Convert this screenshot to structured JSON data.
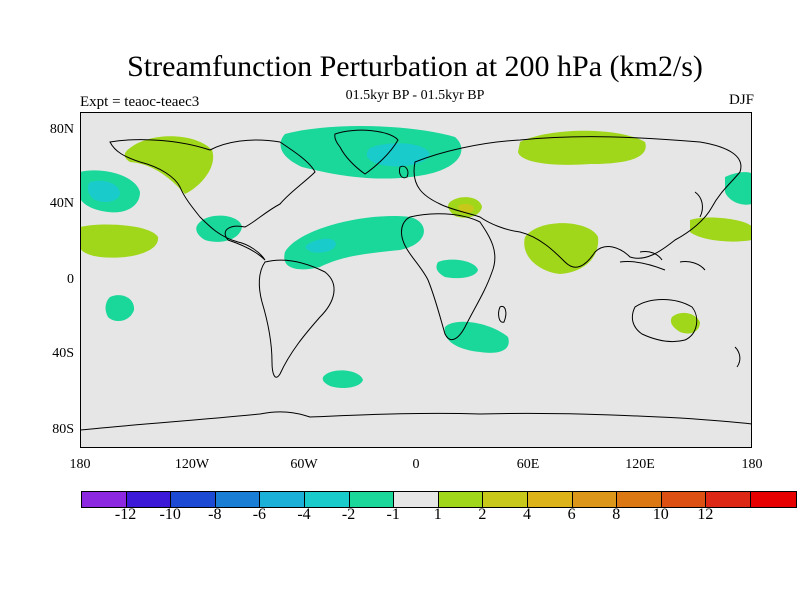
{
  "title": "Streamfunction Perturbation at 200 hPa (km2/s)",
  "left_label": "Expt = teaoc-teaec3",
  "center_label": "01.5kyr BP - 01.5kyr BP",
  "right_label": "DJF",
  "y_labels": [
    "80N",
    "40N",
    "0",
    "40S",
    "80S"
  ],
  "x_labels": [
    "180",
    "120W",
    "60W",
    "0",
    "60E",
    "120E",
    "180"
  ],
  "colorbar": {
    "colors": [
      "#8c28e0",
      "#3c19d8",
      "#1c4ad2",
      "#1a7fd4",
      "#1ab0d8",
      "#1acbcc",
      "#1ad79a",
      "#e6e6e6",
      "#a0d71a",
      "#c8c81a",
      "#dcb41a",
      "#dc961a",
      "#dc7814",
      "#dc5014",
      "#dc2814",
      "#e60000"
    ],
    "tick_labels": [
      "-12",
      "-10",
      "-8",
      "-6",
      "-4",
      "-2",
      "-1",
      "1",
      "2",
      "4",
      "6",
      "8",
      "10",
      "12"
    ]
  },
  "map": {
    "background": "#e6e6e6",
    "land_outline": "#000000",
    "anomalies": [
      {
        "name": "arctic-atlantic-negative",
        "level": -1
      },
      {
        "name": "greenland-core-negative",
        "level": -2
      },
      {
        "name": "north-pacific-west-negative",
        "level": -2
      },
      {
        "name": "caribbean-negative",
        "level": -1
      },
      {
        "name": "tropical-atlantic-negative",
        "level": -2
      },
      {
        "name": "south-pacific-negative",
        "level": -1
      },
      {
        "name": "central-africa-negative",
        "level": -1
      },
      {
        "name": "south-africa-negative",
        "level": -1
      },
      {
        "name": "south-atlantic-negative",
        "level": -1
      },
      {
        "name": "east-pacific-negative",
        "level": -1
      },
      {
        "name": "alaska-positive",
        "level": 1
      },
      {
        "name": "siberia-positive",
        "level": 1
      },
      {
        "name": "india-positive",
        "level": 1
      },
      {
        "name": "mediterranean-positive",
        "level": 1
      },
      {
        "name": "mediterranean-core-positive",
        "level": 2
      },
      {
        "name": "central-pacific-positive",
        "level": 1
      },
      {
        "name": "west-pacific-positive",
        "level": 1
      },
      {
        "name": "australia-positive",
        "level": 1
      }
    ]
  }
}
